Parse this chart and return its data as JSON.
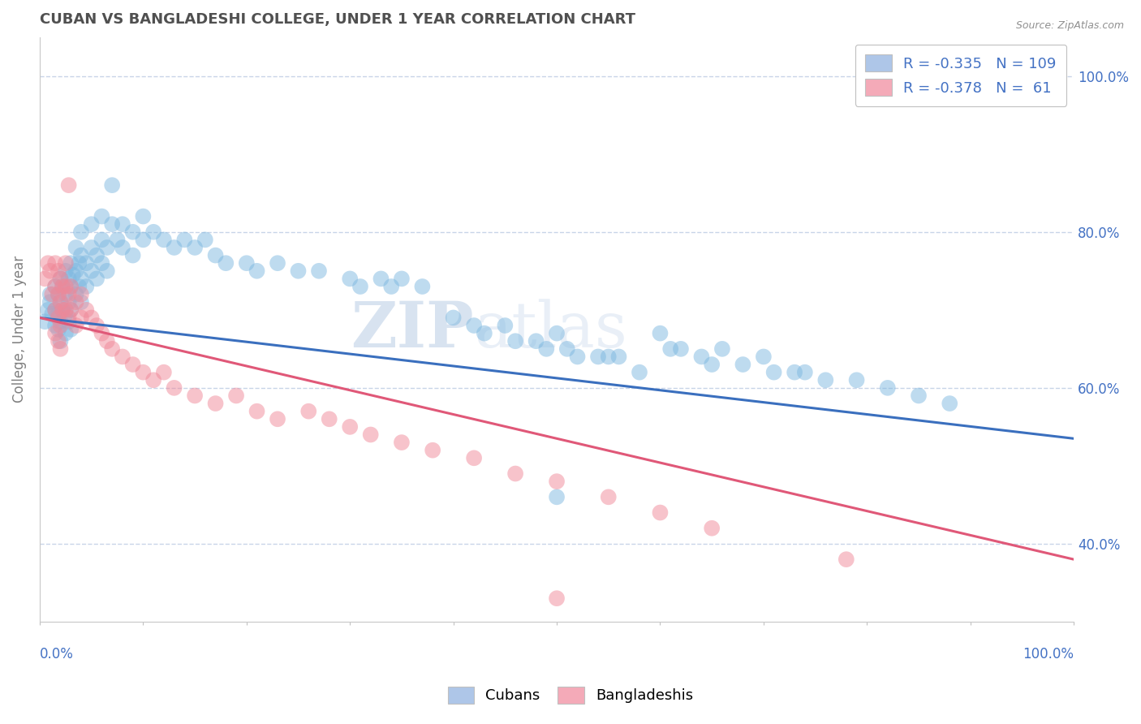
{
  "title": "CUBAN VS BANGLADESHI COLLEGE, UNDER 1 YEAR CORRELATION CHART",
  "source": "Source: ZipAtlas.com",
  "ylabel": "College, Under 1 year",
  "right_ytick_labels": [
    "40.0%",
    "60.0%",
    "80.0%",
    "100.0%"
  ],
  "right_ytick_vals": [
    0.4,
    0.6,
    0.8,
    1.0
  ],
  "xlim": [
    0.0,
    1.0
  ],
  "ylim": [
    0.3,
    1.05
  ],
  "cubans_color": "#7eb8e0",
  "bangladeshis_color": "#f08898",
  "cuban_R": -0.335,
  "cuban_N": 109,
  "bangladeshi_R": -0.378,
  "bangladeshi_N": 61,
  "regression_blue_color": "#3a6fbe",
  "regression_pink_color": "#e05878",
  "watermark_zip": "ZIP",
  "watermark_atlas": "atlas",
  "background_color": "#ffffff",
  "title_color": "#505050",
  "title_fontsize": 13,
  "axis_label_color": "#808080",
  "grid_color": "#c8d4e8",
  "legend_text_color": "#4472c4",
  "legend_blue_face": "#aec6e8",
  "legend_pink_face": "#f4aab8",
  "cuban_points": [
    [
      0.005,
      0.685
    ],
    [
      0.008,
      0.7
    ],
    [
      0.01,
      0.72
    ],
    [
      0.01,
      0.71
    ],
    [
      0.012,
      0.695
    ],
    [
      0.015,
      0.73
    ],
    [
      0.015,
      0.7
    ],
    [
      0.015,
      0.68
    ],
    [
      0.018,
      0.72
    ],
    [
      0.018,
      0.695
    ],
    [
      0.018,
      0.675
    ],
    [
      0.02,
      0.74
    ],
    [
      0.02,
      0.71
    ],
    [
      0.02,
      0.685
    ],
    [
      0.02,
      0.66
    ],
    [
      0.022,
      0.73
    ],
    [
      0.022,
      0.7
    ],
    [
      0.025,
      0.75
    ],
    [
      0.025,
      0.72
    ],
    [
      0.025,
      0.695
    ],
    [
      0.025,
      0.67
    ],
    [
      0.028,
      0.74
    ],
    [
      0.028,
      0.71
    ],
    [
      0.028,
      0.685
    ],
    [
      0.03,
      0.76
    ],
    [
      0.03,
      0.73
    ],
    [
      0.03,
      0.7
    ],
    [
      0.03,
      0.675
    ],
    [
      0.032,
      0.745
    ],
    [
      0.035,
      0.78
    ],
    [
      0.035,
      0.75
    ],
    [
      0.035,
      0.72
    ],
    [
      0.038,
      0.76
    ],
    [
      0.038,
      0.73
    ],
    [
      0.04,
      0.8
    ],
    [
      0.04,
      0.77
    ],
    [
      0.04,
      0.74
    ],
    [
      0.04,
      0.71
    ],
    [
      0.045,
      0.76
    ],
    [
      0.045,
      0.73
    ],
    [
      0.05,
      0.81
    ],
    [
      0.05,
      0.78
    ],
    [
      0.05,
      0.75
    ],
    [
      0.055,
      0.77
    ],
    [
      0.055,
      0.74
    ],
    [
      0.06,
      0.82
    ],
    [
      0.06,
      0.79
    ],
    [
      0.06,
      0.76
    ],
    [
      0.065,
      0.78
    ],
    [
      0.065,
      0.75
    ],
    [
      0.07,
      0.86
    ],
    [
      0.07,
      0.81
    ],
    [
      0.075,
      0.79
    ],
    [
      0.08,
      0.81
    ],
    [
      0.08,
      0.78
    ],
    [
      0.09,
      0.8
    ],
    [
      0.09,
      0.77
    ],
    [
      0.1,
      0.82
    ],
    [
      0.1,
      0.79
    ],
    [
      0.11,
      0.8
    ],
    [
      0.12,
      0.79
    ],
    [
      0.13,
      0.78
    ],
    [
      0.14,
      0.79
    ],
    [
      0.15,
      0.78
    ],
    [
      0.16,
      0.79
    ],
    [
      0.17,
      0.77
    ],
    [
      0.18,
      0.76
    ],
    [
      0.2,
      0.76
    ],
    [
      0.21,
      0.75
    ],
    [
      0.23,
      0.76
    ],
    [
      0.25,
      0.75
    ],
    [
      0.27,
      0.75
    ],
    [
      0.3,
      0.74
    ],
    [
      0.31,
      0.73
    ],
    [
      0.33,
      0.74
    ],
    [
      0.34,
      0.73
    ],
    [
      0.35,
      0.74
    ],
    [
      0.37,
      0.73
    ],
    [
      0.4,
      0.69
    ],
    [
      0.42,
      0.68
    ],
    [
      0.43,
      0.67
    ],
    [
      0.45,
      0.68
    ],
    [
      0.46,
      0.66
    ],
    [
      0.48,
      0.66
    ],
    [
      0.49,
      0.65
    ],
    [
      0.5,
      0.67
    ],
    [
      0.51,
      0.65
    ],
    [
      0.52,
      0.64
    ],
    [
      0.54,
      0.64
    ],
    [
      0.55,
      0.64
    ],
    [
      0.56,
      0.64
    ],
    [
      0.58,
      0.62
    ],
    [
      0.6,
      0.67
    ],
    [
      0.61,
      0.65
    ],
    [
      0.62,
      0.65
    ],
    [
      0.64,
      0.64
    ],
    [
      0.65,
      0.63
    ],
    [
      0.66,
      0.65
    ],
    [
      0.68,
      0.63
    ],
    [
      0.7,
      0.64
    ],
    [
      0.71,
      0.62
    ],
    [
      0.73,
      0.62
    ],
    [
      0.74,
      0.62
    ],
    [
      0.76,
      0.61
    ],
    [
      0.79,
      0.61
    ],
    [
      0.82,
      0.6
    ],
    [
      0.85,
      0.59
    ],
    [
      0.88,
      0.58
    ],
    [
      0.5,
      0.46
    ]
  ],
  "bangladeshi_points": [
    [
      0.005,
      0.74
    ],
    [
      0.008,
      0.76
    ],
    [
      0.01,
      0.75
    ],
    [
      0.012,
      0.72
    ],
    [
      0.015,
      0.76
    ],
    [
      0.015,
      0.73
    ],
    [
      0.015,
      0.7
    ],
    [
      0.015,
      0.67
    ],
    [
      0.018,
      0.75
    ],
    [
      0.018,
      0.72
    ],
    [
      0.018,
      0.69
    ],
    [
      0.018,
      0.66
    ],
    [
      0.02,
      0.74
    ],
    [
      0.02,
      0.71
    ],
    [
      0.02,
      0.68
    ],
    [
      0.02,
      0.65
    ],
    [
      0.022,
      0.73
    ],
    [
      0.022,
      0.7
    ],
    [
      0.025,
      0.76
    ],
    [
      0.025,
      0.73
    ],
    [
      0.025,
      0.7
    ],
    [
      0.028,
      0.86
    ],
    [
      0.028,
      0.72
    ],
    [
      0.028,
      0.69
    ],
    [
      0.03,
      0.73
    ],
    [
      0.03,
      0.7
    ],
    [
      0.035,
      0.71
    ],
    [
      0.035,
      0.68
    ],
    [
      0.04,
      0.72
    ],
    [
      0.04,
      0.69
    ],
    [
      0.045,
      0.7
    ],
    [
      0.05,
      0.69
    ],
    [
      0.055,
      0.68
    ],
    [
      0.06,
      0.67
    ],
    [
      0.065,
      0.66
    ],
    [
      0.07,
      0.65
    ],
    [
      0.08,
      0.64
    ],
    [
      0.09,
      0.63
    ],
    [
      0.1,
      0.62
    ],
    [
      0.11,
      0.61
    ],
    [
      0.12,
      0.62
    ],
    [
      0.13,
      0.6
    ],
    [
      0.15,
      0.59
    ],
    [
      0.17,
      0.58
    ],
    [
      0.19,
      0.59
    ],
    [
      0.21,
      0.57
    ],
    [
      0.23,
      0.56
    ],
    [
      0.26,
      0.57
    ],
    [
      0.28,
      0.56
    ],
    [
      0.3,
      0.55
    ],
    [
      0.32,
      0.54
    ],
    [
      0.35,
      0.53
    ],
    [
      0.38,
      0.52
    ],
    [
      0.42,
      0.51
    ],
    [
      0.46,
      0.49
    ],
    [
      0.5,
      0.48
    ],
    [
      0.55,
      0.46
    ],
    [
      0.6,
      0.44
    ],
    [
      0.65,
      0.42
    ],
    [
      0.78,
      0.38
    ],
    [
      0.5,
      0.33
    ]
  ]
}
